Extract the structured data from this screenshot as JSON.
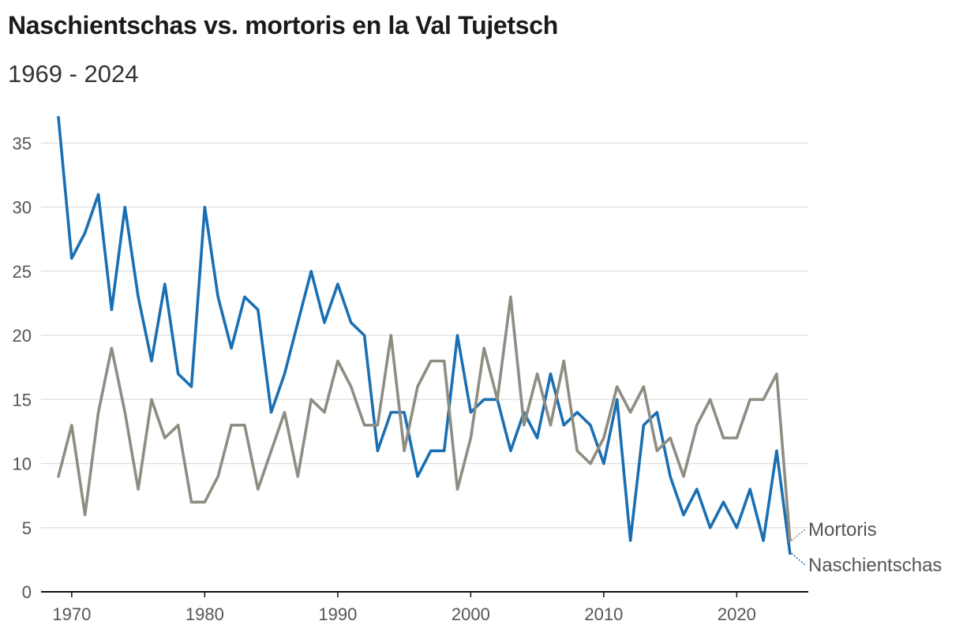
{
  "chart_data": {
    "type": "line",
    "title": "Naschientschas vs. mortoris en la Val Tujetsch",
    "subtitle": "1969 - 2024",
    "xlabel": "",
    "ylabel": "",
    "xlim": [
      1968,
      2025
    ],
    "ylim": [
      0,
      37
    ],
    "x_ticks": [
      1970,
      1980,
      1990,
      2000,
      2010,
      2020
    ],
    "y_ticks": [
      0,
      5,
      10,
      15,
      20,
      25,
      30,
      35
    ],
    "grid": "horizontal",
    "legend": "inline labels at line ends (right)",
    "x": [
      1969,
      1970,
      1971,
      1972,
      1973,
      1974,
      1975,
      1976,
      1977,
      1978,
      1979,
      1980,
      1981,
      1982,
      1983,
      1984,
      1985,
      1986,
      1987,
      1988,
      1989,
      1990,
      1991,
      1992,
      1993,
      1994,
      1995,
      1996,
      1997,
      1998,
      1999,
      2000,
      2001,
      2002,
      2003,
      2004,
      2005,
      2006,
      2007,
      2008,
      2009,
      2010,
      2011,
      2012,
      2013,
      2014,
      2015,
      2016,
      2017,
      2018,
      2019,
      2020,
      2021,
      2022,
      2023,
      2024
    ],
    "series": [
      {
        "name": "Naschientschas",
        "color": "#1a6fb3",
        "values": [
          37,
          26,
          28,
          31,
          22,
          30,
          23,
          18,
          24,
          17,
          16,
          30,
          23,
          19,
          23,
          22,
          14,
          17,
          21,
          25,
          21,
          24,
          21,
          20,
          11,
          14,
          14,
          9,
          11,
          11,
          20,
          14,
          15,
          15,
          11,
          14,
          12,
          17,
          13,
          14,
          13,
          10,
          15,
          4,
          13,
          14,
          9,
          6,
          8,
          5,
          7,
          5,
          8,
          4,
          11,
          3
        ]
      },
      {
        "name": "Mortoris",
        "color": "#8f8c82",
        "values": [
          9,
          13,
          6,
          14,
          19,
          14,
          8,
          15,
          12,
          13,
          7,
          7,
          9,
          13,
          13,
          8,
          11,
          14,
          9,
          15,
          14,
          18,
          16,
          13,
          13,
          20,
          11,
          16,
          18,
          18,
          8,
          12,
          19,
          15,
          23,
          13,
          17,
          13,
          18,
          11,
          10,
          12,
          16,
          14,
          16,
          11,
          12,
          9,
          13,
          15,
          12,
          12,
          15,
          15,
          17,
          4
        ]
      }
    ]
  }
}
